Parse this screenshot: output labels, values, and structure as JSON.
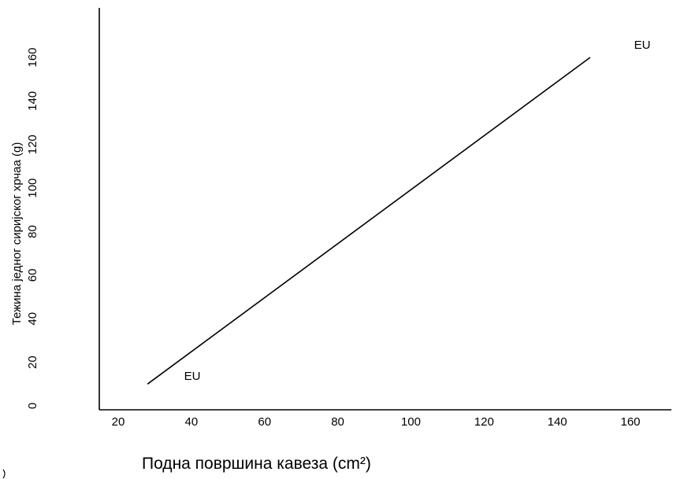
{
  "chart_data": {
    "type": "line",
    "xlabel": "Подна површина кавеза (cm²)",
    "ylabel": "Тежина једног сиријског хрчаа (g)",
    "xlim": [
      18,
      172
    ],
    "ylim": [
      -3,
      186
    ],
    "x_ticks": [
      20,
      40,
      60,
      80,
      100,
      120,
      140,
      160
    ],
    "y_ticks": [
      0,
      20,
      40,
      60,
      80,
      100,
      120,
      140,
      160
    ],
    "grid": false,
    "series": [
      {
        "x": [
          28,
          149
        ],
        "y": [
          10,
          160
        ]
      }
    ],
    "annotations": [
      {
        "text": "EU",
        "x": 38,
        "y": 12
      },
      {
        "text": "EU",
        "x": 161,
        "y": 164
      }
    ]
  }
}
